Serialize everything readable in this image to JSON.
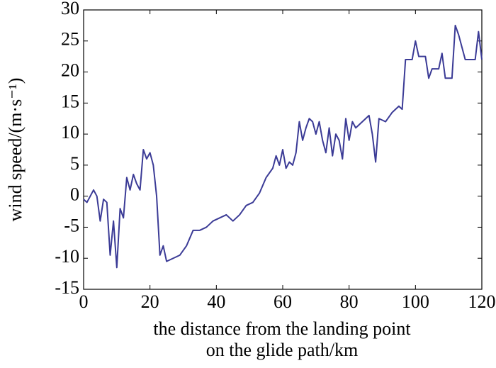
{
  "chart_data": {
    "type": "line",
    "xlabel": [
      "the distance from the landing point",
      "on the glide path/km"
    ],
    "ylabel": "wind speed/(m·s⁻¹)",
    "xlim": [
      0,
      120
    ],
    "xticks": [
      0,
      20,
      40,
      60,
      80,
      100,
      120
    ],
    "ylim": [
      -15,
      30
    ],
    "yticks": [
      -15,
      -10,
      -5,
      0,
      5,
      10,
      15,
      20,
      25,
      30
    ],
    "series": [
      {
        "color": "#3b3b96",
        "x": [
          0,
          1,
          2,
          3,
          4,
          5,
          6,
          7,
          8,
          9,
          10,
          11,
          12,
          13,
          14,
          15,
          16,
          17,
          18,
          19,
          20,
          21,
          22,
          23,
          24,
          25,
          27,
          29,
          31,
          33,
          35,
          37,
          39,
          41,
          43,
          45,
          47,
          49,
          51,
          53,
          55,
          57,
          58,
          59,
          60,
          61,
          62,
          63,
          64,
          65,
          66,
          67,
          68,
          69,
          70,
          71,
          72,
          73,
          74,
          75,
          76,
          77,
          78,
          79,
          80,
          81,
          82,
          84,
          86,
          87,
          88,
          89,
          91,
          93,
          95,
          96,
          97,
          99,
          100,
          101,
          103,
          104,
          105,
          107,
          108,
          109,
          111,
          112,
          113,
          114,
          115,
          118,
          119,
          120
        ],
        "values": [
          -0.5,
          -1,
          0,
          1,
          0,
          -4,
          -0.5,
          -1,
          -9.5,
          -4,
          -11.5,
          -2,
          -3.5,
          3,
          1,
          3.5,
          2,
          1,
          7.5,
          6,
          7,
          5,
          0,
          -9.5,
          -8,
          -10.5,
          -10,
          -9.5,
          -8,
          -5.5,
          -5.5,
          -5,
          -4,
          -3.5,
          -3,
          -4,
          -3,
          -1.5,
          -1,
          0.5,
          3,
          4.5,
          6.5,
          5,
          7.5,
          4.5,
          5.5,
          5,
          7,
          12,
          9,
          11,
          12.5,
          12,
          10,
          12,
          9,
          7,
          11,
          6.5,
          10,
          9,
          6,
          12.5,
          9,
          12,
          11,
          12,
          13,
          10,
          5.5,
          12.5,
          12,
          13.5,
          14.5,
          14,
          22,
          22,
          25,
          22.5,
          22.5,
          19,
          20.5,
          20.5,
          23,
          19,
          19,
          27.5,
          26,
          24,
          22,
          22,
          26.5,
          22
        ]
      }
    ]
  }
}
